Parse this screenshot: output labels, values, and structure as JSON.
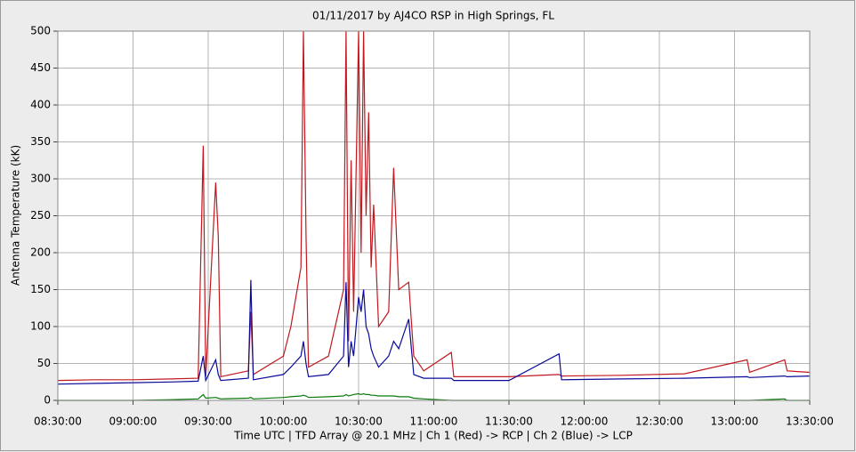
{
  "chart_data": {
    "type": "line",
    "title": "01/11/2017  by  AJ4CO RSP  in  High Springs, FL",
    "ylabel": "Antenna Temperature (kK)",
    "xlabel": "Time UTC   |   TFD Array @ 20.1 MHz   |   Ch 1 (Red) -> RCP   |   Ch 2 (Blue)  -> LCP",
    "x": [
      "08:30:00",
      "08:45:00",
      "09:00:00",
      "09:15:00",
      "09:26:00",
      "09:28:00",
      "09:29:00",
      "09:33:00",
      "09:34:00",
      "09:35:00",
      "09:46:00",
      "09:47:00",
      "09:48:00",
      "10:00:00",
      "10:03:00",
      "10:07:00",
      "10:08:00",
      "10:09:00",
      "10:10:00",
      "10:18:00",
      "10:24:00",
      "10:25:00",
      "10:26:00",
      "10:27:00",
      "10:28:00",
      "10:30:00",
      "10:31:00",
      "10:32:00",
      "10:33:00",
      "10:34:00",
      "10:35:00",
      "10:36:00",
      "10:38:00",
      "10:42:00",
      "10:44:00",
      "10:46:00",
      "10:50:00",
      "10:52:00",
      "10:56:00",
      "11:07:00",
      "11:08:00",
      "11:30:00",
      "11:50:00",
      "11:51:00",
      "12:15:00",
      "12:40:00",
      "13:05:00",
      "13:06:00",
      "13:20:00",
      "13:21:00",
      "13:30:00"
    ],
    "series": [
      {
        "color": "#c0181e",
        "values": [
          27,
          28,
          28,
          29,
          30,
          345,
          32,
          295,
          222,
          32,
          40,
          120,
          35,
          60,
          100,
          180,
          500,
          225,
          45,
          60,
          150,
          500,
          80,
          325,
          120,
          500,
          200,
          500,
          250,
          390,
          180,
          265,
          100,
          120,
          315,
          150,
          160,
          60,
          40,
          65,
          32,
          32,
          35,
          33,
          34,
          36,
          55,
          38,
          55,
          40,
          38
        ]
      },
      {
        "color": "#0a0a9a",
        "values": [
          22,
          23,
          24,
          25,
          26,
          60,
          27,
          55,
          35,
          27,
          30,
          163,
          28,
          35,
          45,
          60,
          80,
          50,
          32,
          35,
          60,
          160,
          45,
          80,
          60,
          140,
          120,
          150,
          100,
          90,
          70,
          60,
          45,
          60,
          80,
          70,
          110,
          35,
          30,
          30,
          27,
          27,
          63,
          28,
          29,
          30,
          32,
          31,
          33,
          32,
          33
        ]
      },
      {
        "color": "#0a7a0a",
        "values": [
          0,
          0,
          0,
          1,
          2,
          8,
          3,
          4,
          3,
          2,
          3,
          4,
          2,
          4,
          5,
          6,
          7,
          6,
          4,
          5,
          6,
          8,
          6,
          7,
          8,
          9,
          8,
          9,
          8,
          8,
          7,
          7,
          6,
          6,
          6,
          5,
          5,
          3,
          2,
          0,
          0,
          0,
          0,
          0,
          0,
          0,
          0,
          0,
          2,
          0,
          0
        ]
      }
    ],
    "xlim": [
      "08:30:00",
      "13:30:00"
    ],
    "xticks": [
      "08:30:00",
      "09:00:00",
      "09:30:00",
      "10:00:00",
      "10:30:00",
      "11:00:00",
      "11:30:00",
      "12:00:00",
      "12:30:00",
      "13:00:00",
      "13:30:00"
    ],
    "ylim": [
      0,
      500
    ],
    "yticks": [
      0,
      50,
      100,
      150,
      200,
      250,
      300,
      350,
      400,
      450,
      500
    ],
    "grid": true
  }
}
